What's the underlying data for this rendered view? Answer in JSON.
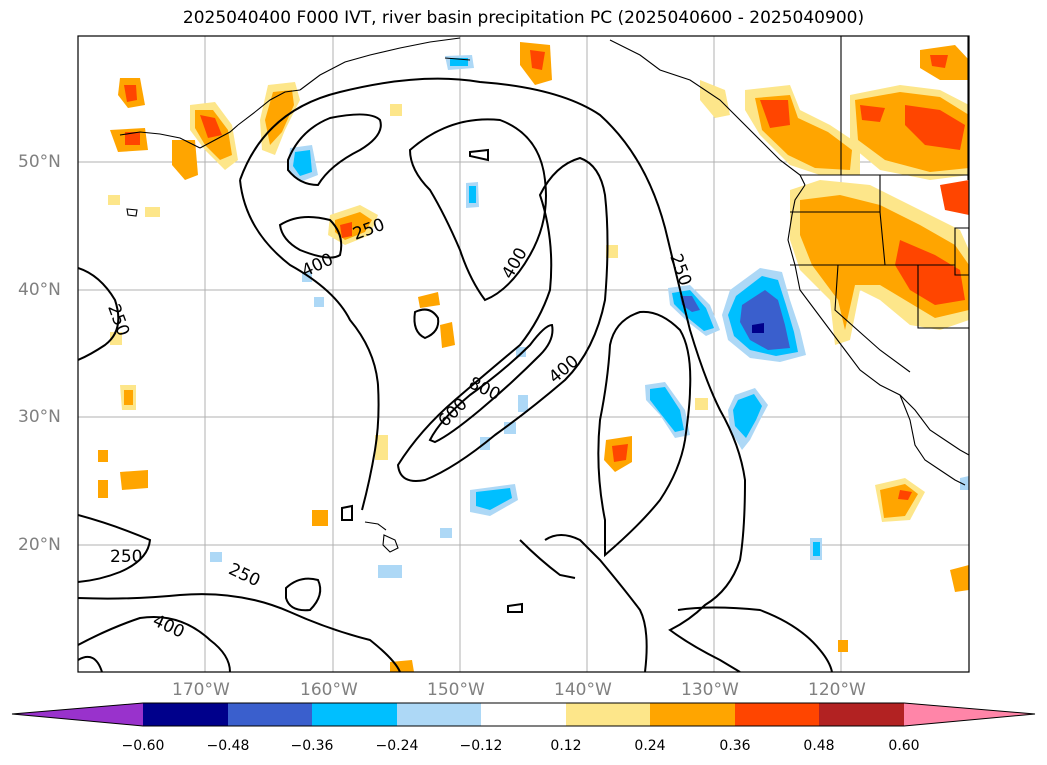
{
  "title": "2025040400 F000 IVT, river basin precipitation PC (2025040600 - 2025040900)",
  "lat_labels": [
    "50°N",
    "40°N",
    "30°N",
    "20°N"
  ],
  "lon_labels": [
    "170°W",
    "160°W",
    "150°W",
    "140°W",
    "130°W",
    "120°W"
  ],
  "contour_labels": [
    "250",
    "400",
    "250",
    "400",
    "250",
    "600",
    "800",
    "400",
    "250",
    "250",
    "400"
  ],
  "colorbar": {
    "ticks": [
      "−0.60",
      "−0.48",
      "−0.36",
      "−0.24",
      "−0.12",
      "0.12",
      "0.24",
      "0.36",
      "0.48",
      "0.60"
    ],
    "colors": [
      "#9932cc",
      "#00008b",
      "#3a5fcd",
      "#00bfff",
      "#add8f6",
      "#ffffff",
      "#fde68a",
      "#ffa500",
      "#ff4500",
      "#b22222",
      "#ff85a8"
    ]
  }
}
